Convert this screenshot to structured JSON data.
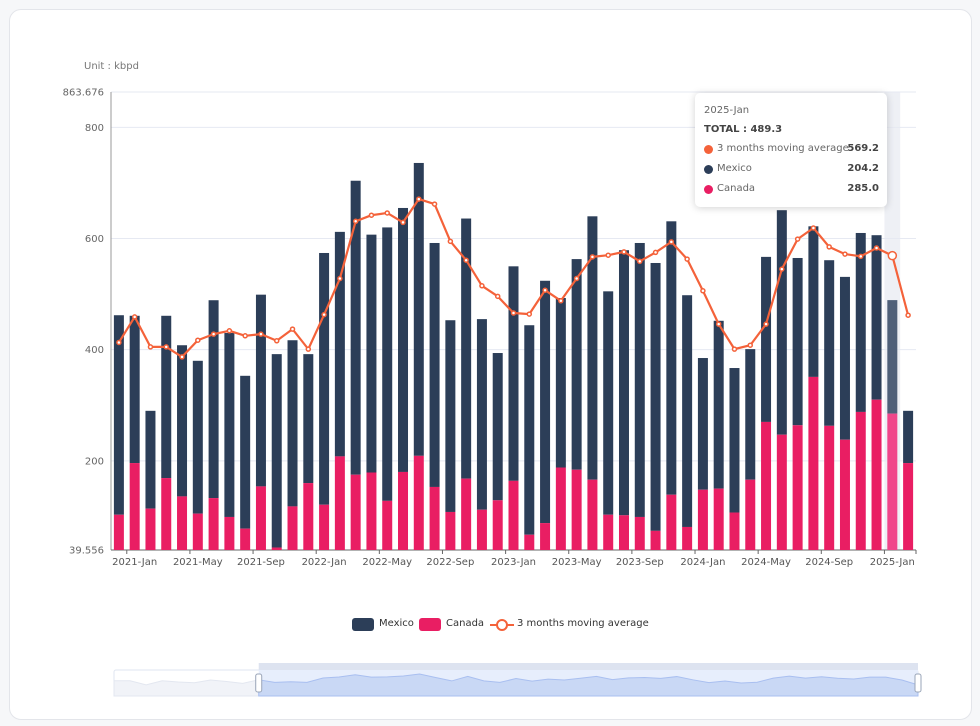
{
  "unit_label": "Unit : kbpd",
  "colors": {
    "mexico": "#2c3e58",
    "canada": "#e91e63",
    "moving_average": "#f4623a",
    "mexico_highlight": "#4f6079",
    "canada_highlight": "#f0468a",
    "slider": "#c9d8f5"
  },
  "chart_data": {
    "type": "bar",
    "stacked": true,
    "ylabel": "Unit : kbpd",
    "ylim": [
      39.556,
      863.676
    ],
    "y_ticks": [
      "863.676",
      "800",
      "600",
      "400",
      "200",
      "39.556"
    ],
    "y_tick_values": [
      863.676,
      800,
      600,
      400,
      200,
      39.556
    ],
    "grid": true,
    "legend_placement": "bottom",
    "categories": [
      "2020-Dec",
      "2021-Jan",
      "2021-Feb",
      "2021-Mar",
      "2021-Apr",
      "2021-May",
      "2021-Jun",
      "2021-Jul",
      "2021-Aug",
      "2021-Sep",
      "2021-Oct",
      "2021-Nov",
      "2021-Dec",
      "2022-Jan",
      "2022-Feb",
      "2022-Mar",
      "2022-Apr",
      "2022-May",
      "2022-Jun",
      "2022-Jul",
      "2022-Aug",
      "2022-Sep",
      "2022-Oct",
      "2022-Nov",
      "2022-Dec",
      "2023-Jan",
      "2023-Feb",
      "2023-Mar",
      "2023-Apr",
      "2023-May",
      "2023-Jun",
      "2023-Jul",
      "2023-Aug",
      "2023-Sep",
      "2023-Oct",
      "2023-Nov",
      "2023-Dec",
      "2024-Jan",
      "2024-Feb",
      "2024-Mar",
      "2024-Apr",
      "2024-May",
      "2024-Jun",
      "2024-Jul",
      "2024-Aug",
      "2024-Sep",
      "2024-Oct",
      "2024-Nov",
      "2024-Dec",
      "2025-Jan",
      "2025-Feb"
    ],
    "x_tick_labels": [
      "2021-Jan",
      "2021-May",
      "2021-Sep",
      "2022-Jan",
      "2022-May",
      "2022-Sep",
      "2023-Jan",
      "2023-May",
      "2023-Sep",
      "2024-Jan",
      "2024-May",
      "2024-Sep",
      "2025-Jan"
    ],
    "series": [
      {
        "name": "Mexico",
        "type": "bar",
        "values": [
          359,
          265,
          176,
          292,
          272,
          275,
          356,
          331,
          275,
          345,
          348,
          299,
          232,
          453,
          404,
          529,
          428,
          492,
          475,
          527,
          439,
          345,
          468,
          343,
          265,
          386,
          377,
          436,
          305,
          379,
          474,
          402,
          477,
          493,
          482,
          492,
          417,
          237,
          302,
          260,
          235,
          297,
          404,
          301,
          271,
          298,
          293,
          322,
          296,
          204.2,
          94
        ]
      },
      {
        "name": "Canada",
        "type": "bar",
        "values": [
          103,
          196,
          114,
          169,
          136,
          105,
          133,
          99,
          78,
          154,
          44,
          118,
          160,
          121,
          208,
          175,
          179,
          128,
          180,
          209,
          153,
          108,
          168,
          112,
          129,
          164,
          67,
          88,
          188,
          184,
          166,
          103,
          102,
          99,
          74,
          139,
          81,
          148,
          150,
          107,
          166,
          270,
          247,
          264,
          351,
          263,
          238,
          288,
          310,
          285.0,
          196
        ]
      },
      {
        "name": "3 months moving average",
        "type": "line",
        "values": [
          413,
          459,
          405,
          405,
          387,
          417,
          428,
          434,
          425,
          428,
          416,
          437,
          401,
          463,
          528,
          631,
          642,
          646,
          629,
          671,
          662,
          595,
          561,
          515,
          496,
          466,
          464,
          507,
          488,
          528,
          567,
          570,
          576,
          559,
          575,
          594,
          563,
          506,
          446,
          401,
          408,
          446,
          545,
          599,
          619,
          585,
          572,
          568,
          583,
          569.2,
          462
        ]
      }
    ],
    "highlighted_category": "2025-Jan"
  },
  "tooltip": {
    "date": "2025-Jan",
    "total": "TOTAL : 489.3",
    "rows": [
      {
        "name": "3 months moving average",
        "value": "569.2"
      },
      {
        "name": "Mexico",
        "value": "204.2"
      },
      {
        "name": "Canada",
        "value": "285.0"
      }
    ]
  },
  "legend": [
    {
      "name": "Mexico"
    },
    {
      "name": "Canada"
    },
    {
      "name": "3 months moving average"
    }
  ],
  "data_zoom": {
    "start_percent": 18,
    "end_percent": 100
  }
}
